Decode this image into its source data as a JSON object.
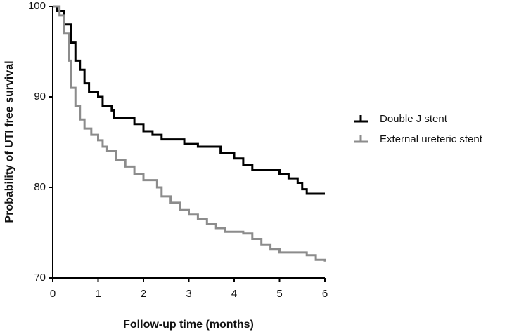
{
  "chart_data": {
    "type": "line",
    "step": true,
    "x_label": "Follow-up time (months)",
    "y_label": "Probability of UTI free survival",
    "xlim": [
      0,
      6
    ],
    "xticks": [
      0,
      1,
      2,
      3,
      4,
      5,
      6
    ],
    "ylim": [
      70,
      100
    ],
    "yticks": [
      70,
      80,
      90,
      100
    ],
    "legend": "right",
    "series": [
      {
        "name": "Double J stent",
        "color": "#000000",
        "x": [
          0,
          0.1,
          0.25,
          0.4,
          0.5,
          0.6,
          0.7,
          0.8,
          1.0,
          1.1,
          1.3,
          1.35,
          1.8,
          2.0,
          2.2,
          2.4,
          2.9,
          3.2,
          3.7,
          4.0,
          4.2,
          4.4,
          5.0,
          5.2,
          5.4,
          5.5,
          5.6,
          6.0
        ],
        "values": [
          100,
          99.5,
          98,
          96,
          94,
          93,
          91.5,
          90.5,
          90,
          89,
          88.5,
          87.7,
          87,
          86.2,
          85.8,
          85.3,
          84.8,
          84.5,
          83.8,
          83.2,
          82.5,
          81.9,
          81.5,
          81,
          80.5,
          79.8,
          79.3,
          79.3
        ]
      },
      {
        "name": "External ureteric stent",
        "color": "#8c8c8c",
        "x": [
          0,
          0.15,
          0.25,
          0.35,
          0.4,
          0.5,
          0.6,
          0.7,
          0.85,
          1.0,
          1.1,
          1.2,
          1.4,
          1.6,
          1.8,
          2.0,
          2.3,
          2.4,
          2.6,
          2.8,
          3.0,
          3.2,
          3.4,
          3.6,
          3.8,
          4.2,
          4.4,
          4.6,
          4.8,
          5.0,
          5.6,
          5.8,
          6.0
        ],
        "values": [
          100,
          99,
          97,
          94,
          91,
          89,
          87.5,
          86.5,
          85.8,
          85.2,
          84.5,
          84,
          83,
          82.3,
          81.5,
          80.8,
          80,
          79,
          78.3,
          77.5,
          77,
          76.5,
          76,
          75.5,
          75.1,
          74.9,
          74.3,
          73.7,
          73.2,
          72.8,
          72.5,
          72,
          71.8
        ]
      }
    ]
  }
}
